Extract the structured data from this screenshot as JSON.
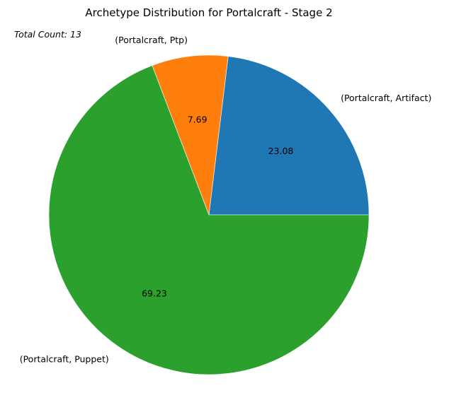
{
  "chart_data": {
    "type": "pie",
    "title": "Archetype Distribution for Portalcraft - Stage 2",
    "annotation": "Total Count: 13",
    "slices": [
      {
        "label": "(Portalcraft, Artifact)",
        "value": 23.08,
        "pct_label": "23.08",
        "color": "#1f77b4"
      },
      {
        "label": "(Portalcraft, Ptp)",
        "value": 7.69,
        "pct_label": "7.69",
        "color": "#ff7f0e"
      },
      {
        "label": "(Portalcraft, Puppet)",
        "value": 69.23,
        "pct_label": "69.23",
        "color": "#2ca02c"
      }
    ],
    "start_angle_deg": 0,
    "direction": "counterclockwise"
  }
}
